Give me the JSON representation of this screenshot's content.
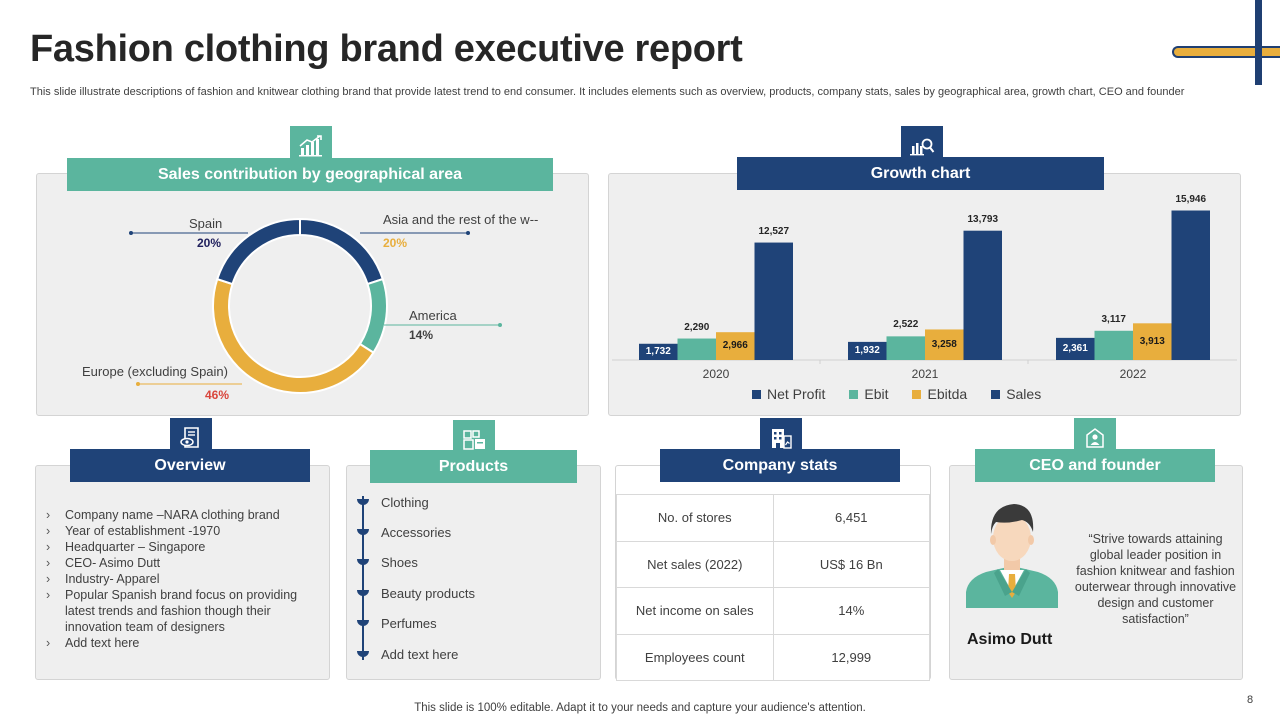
{
  "slide": {
    "title": "Fashion clothing brand executive report",
    "subtitle": "This slide illustrate descriptions of fashion and knitwear clothing brand that provide latest trend to  end consumer. It includes elements such as overview, products, company stats, sales by geographical area, growth chart, CEO and founder",
    "footer": "This slide is 100% editable. Adapt it to your needs and capture your audience's attention.",
    "page_number": "8"
  },
  "sections": {
    "sales_geo": "Sales contribution by geographical area",
    "growth": "Growth chart",
    "overview": "Overview",
    "products": "Products",
    "company_stats": "Company stats",
    "ceo": "CEO and founder"
  },
  "icons": {
    "sales_geo": "bar-chart-up-icon",
    "growth": "magnifier-chart-icon",
    "overview": "document-eye-icon",
    "products": "boxes-icon",
    "company_stats": "building-icon",
    "ceo": "person-building-icon"
  },
  "colors": {
    "navy": "#1f4378",
    "teal": "#5bb59e",
    "gold": "#e8ae3d",
    "panel": "#efefef"
  },
  "chart_data": [
    {
      "type": "pie",
      "style": "donut",
      "title": "Sales contribution by geographical area",
      "categories": [
        "Asia and the rest of the w--",
        "America",
        "Europe (excluding Spain)",
        "Spain"
      ],
      "values": [
        20,
        14,
        46,
        20
      ],
      "labels": [
        "20%",
        "14%",
        "46%",
        "20%"
      ],
      "colors": [
        "#1f4378",
        "#5bb59e",
        "#e8ae3d",
        "#1f4378"
      ]
    },
    {
      "type": "bar",
      "title": "Growth chart",
      "categories": [
        "2020",
        "2021",
        "2022"
      ],
      "series": [
        {
          "name": "Net Profit",
          "color": "#1f4378",
          "values": [
            1732,
            1932,
            2361
          ],
          "labels": [
            "1,732",
            "1,932",
            "2,361"
          ]
        },
        {
          "name": "Ebit",
          "color": "#5bb59e",
          "values": [
            2290,
            2522,
            3117
          ],
          "labels": [
            "2,290",
            "2,522",
            "3,117"
          ]
        },
        {
          "name": "Ebitda",
          "color": "#e8ae3d",
          "values": [
            2966,
            3258,
            3913
          ],
          "labels": [
            "2,966",
            "3,258",
            "3,913"
          ]
        },
        {
          "name": "Sales",
          "color": "#1f4378",
          "values": [
            12527,
            13793,
            15946
          ],
          "labels": [
            "12,527",
            "13,793",
            "15,946"
          ]
        }
      ],
      "ylim": [
        0,
        16000
      ],
      "legend": "bottom"
    }
  ],
  "overview": {
    "items": [
      "Company name –NARA clothing brand",
      "Year of establishment -1970",
      "Headquarter  – Singapore",
      "CEO- Asimo Dutt",
      "Industry- Apparel",
      "Popular Spanish brand focus on providing latest trends and fashion though their innovation  team of designers",
      "Add text here"
    ]
  },
  "products": {
    "items": [
      "Clothing",
      "Accessories",
      "Shoes",
      "Beauty products",
      "Perfumes",
      "Add text here"
    ]
  },
  "company_stats": {
    "rows": [
      {
        "label": "No. of stores",
        "value": "6,451"
      },
      {
        "label": "Net sales (2022)",
        "value": "US$ 16 Bn"
      },
      {
        "label": "Net income on sales",
        "value": "14%"
      },
      {
        "label": "Employees count",
        "value": "12,999"
      }
    ]
  },
  "ceo": {
    "quote": "“Strive towards attaining global leader position in fashion knitwear  and fashion outerwear through innovative  design and customer satisfaction”",
    "name": "Asimo Dutt"
  }
}
